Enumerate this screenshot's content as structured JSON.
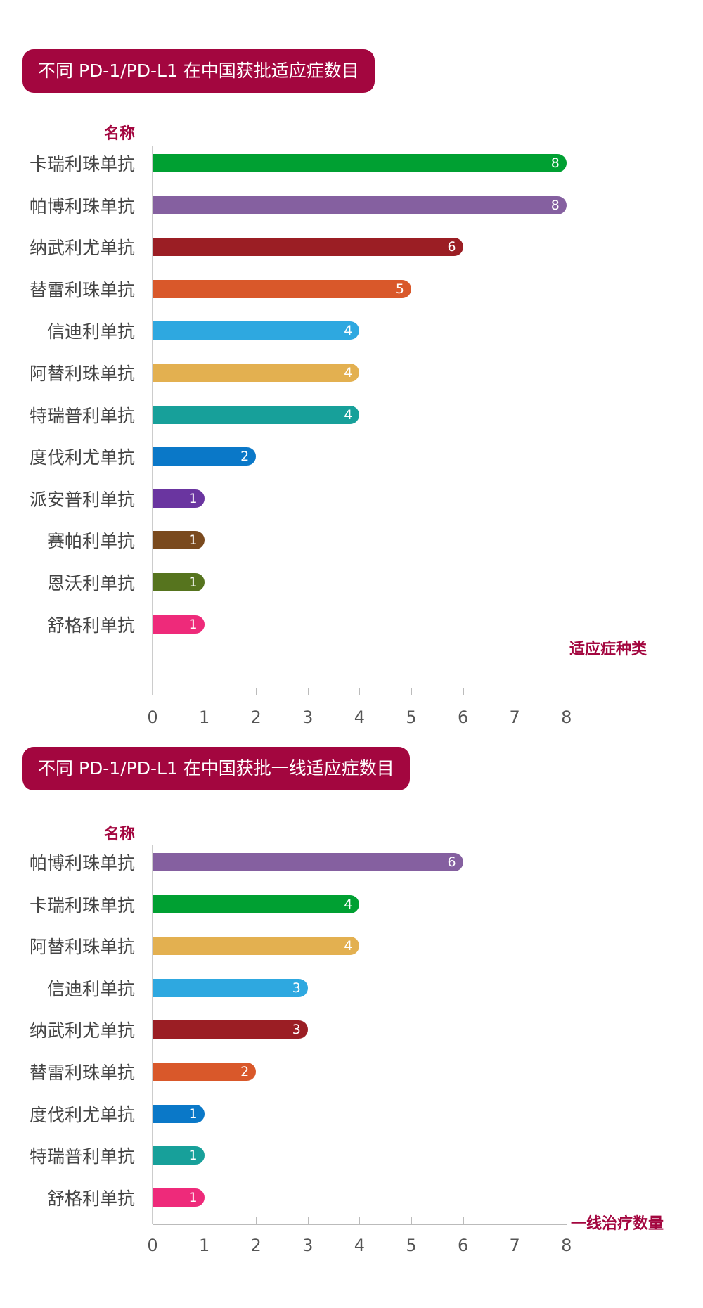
{
  "chart_data": [
    {
      "type": "bar",
      "orientation": "horizontal",
      "title": "不同  PD-1/PD-L1 在中国获批适应症数目",
      "ylabel": "名称",
      "xlabel": "适应症种类",
      "xlim": [
        0,
        8
      ],
      "ticks": [
        "0",
        "1",
        "2",
        "3",
        "4",
        "5",
        "6",
        "7",
        "8"
      ],
      "categories": [
        "卡瑞利珠单抗",
        "帕博利珠单抗",
        "纳武利尤单抗",
        "替雷利珠单抗",
        "信迪利单抗",
        "阿替利珠单抗",
        "特瑞普利单抗",
        "度伐利尤单抗",
        "派安普利单抗",
        "赛帕利单抗",
        "恩沃利单抗",
        "舒格利单抗"
      ],
      "values": [
        8,
        8,
        6,
        5,
        4,
        4,
        4,
        2,
        1,
        1,
        1,
        1
      ],
      "colors": [
        "#00a032",
        "#8560a0",
        "#9b1e24",
        "#d9582a",
        "#2ea8e0",
        "#e3b050",
        "#17a09a",
        "#0a78c8",
        "#6a35a0",
        "#7a4a1e",
        "#56741e",
        "#ee2a7a"
      ]
    },
    {
      "type": "bar",
      "orientation": "horizontal",
      "title": "不同 PD-1/PD-L1 在中国获批一线适应症数目",
      "ylabel": "名称",
      "xlabel": "一线治疗数量",
      "xlim": [
        0,
        8
      ],
      "ticks": [
        "0",
        "1",
        "2",
        "3",
        "4",
        "5",
        "6",
        "7",
        "8"
      ],
      "categories": [
        "帕博利珠单抗",
        "卡瑞利珠单抗",
        "阿替利珠单抗",
        "信迪利单抗",
        "纳武利尤单抗",
        "替雷利珠单抗",
        "度伐利尤单抗",
        "特瑞普利单抗",
        "舒格利单抗"
      ],
      "values": [
        6,
        4,
        4,
        3,
        3,
        2,
        1,
        1,
        1
      ],
      "colors": [
        "#8560a0",
        "#00a032",
        "#e3b050",
        "#2ea8e0",
        "#9b1e24",
        "#d9582a",
        "#0a78c8",
        "#17a09a",
        "#ee2a7a"
      ]
    }
  ]
}
